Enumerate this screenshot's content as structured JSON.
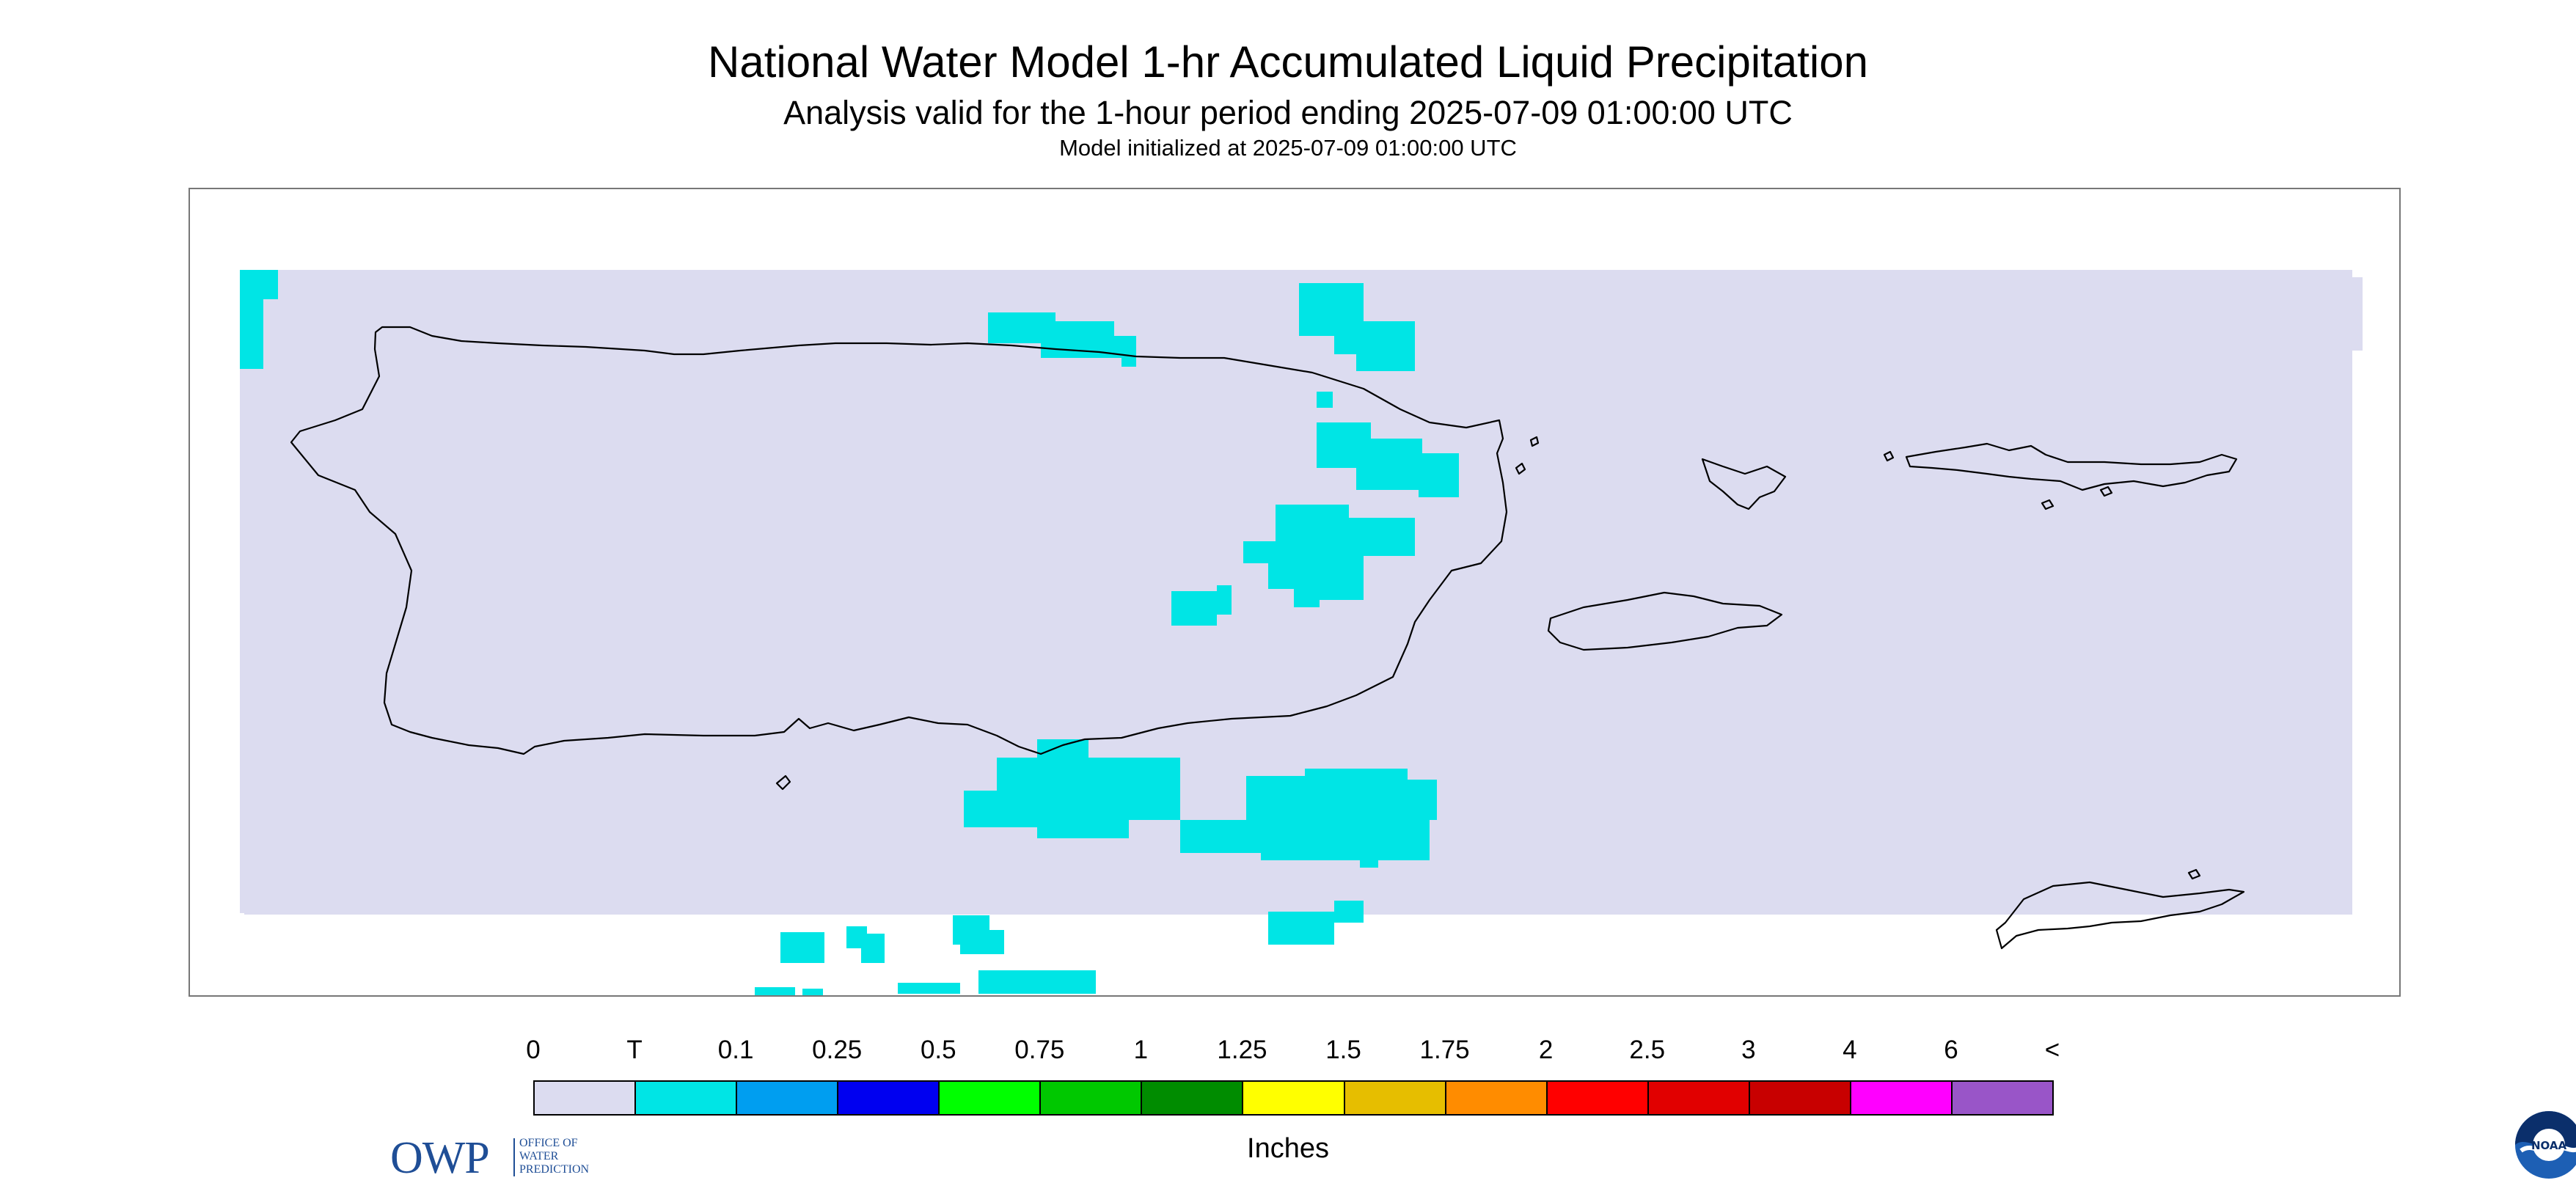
{
  "header": {
    "title": "National Water Model 1-hr Accumulated Liquid Precipitation",
    "subtitle": "Analysis valid for the 1-hour period ending 2025-07-09 01:00:00 UTC",
    "init": "Model initialized at 2025-07-09 01:00:00 UTC"
  },
  "logos": {
    "owp_abbrev": "OWP",
    "owp_lines": [
      "OFFICE OF",
      "WATER",
      "PREDICTION"
    ],
    "noaa": "NOAA"
  },
  "map": {
    "background_color": "#dcdcf0",
    "precip_color": "#00e5e5",
    "coast_color": "#000000"
  },
  "legend": {
    "labels": [
      "0",
      "T",
      "0.1",
      "0.25",
      "0.5",
      "0.75",
      "1",
      "1.25",
      "1.5",
      "1.75",
      "2",
      "2.5",
      "3",
      "4",
      "6",
      "<"
    ],
    "colors": [
      "#dcdcf0",
      "#00e5e5",
      "#009ef0",
      "#0000f0",
      "#00ff00",
      "#00c800",
      "#008c00",
      "#ffff00",
      "#e6be00",
      "#ff8c00",
      "#ff0000",
      "#e10000",
      "#c80000",
      "#ff00ff",
      "#9955c8"
    ],
    "units": "Inches"
  }
}
